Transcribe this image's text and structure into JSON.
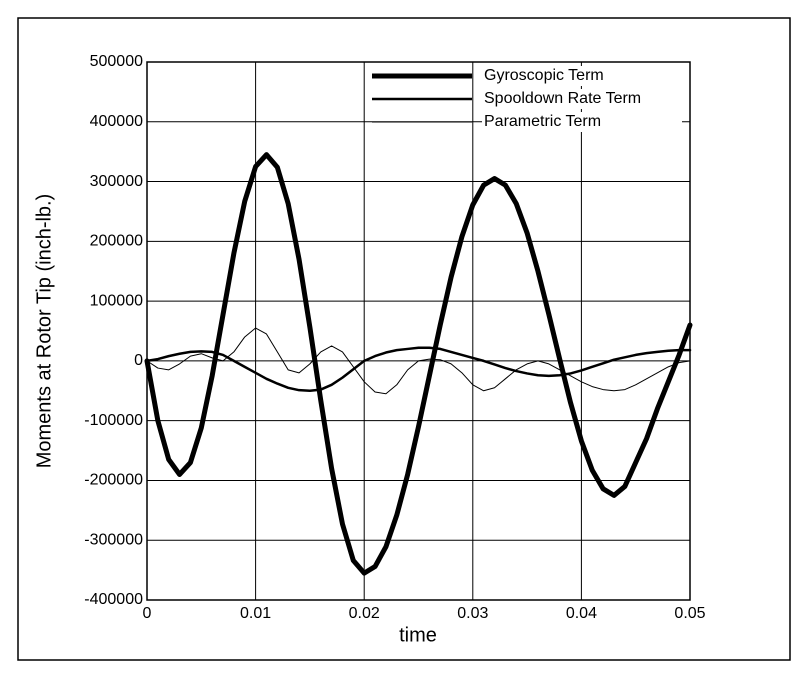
{
  "chart_data": {
    "type": "line",
    "xlabel": "time",
    "ylabel": "Moments at Rotor Tip   (inch-lb.)",
    "x": [
      0,
      0.001,
      0.002,
      0.003,
      0.004,
      0.005,
      0.006,
      0.007,
      0.008,
      0.009,
      0.01,
      0.011,
      0.012,
      0.013,
      0.014,
      0.015,
      0.016,
      0.017,
      0.018,
      0.019,
      0.02,
      0.021,
      0.022,
      0.023,
      0.024,
      0.025,
      0.026,
      0.027,
      0.028,
      0.029,
      0.03,
      0.031,
      0.032,
      0.033,
      0.034,
      0.035,
      0.036,
      0.037,
      0.038,
      0.039,
      0.04,
      0.041,
      0.042,
      0.043,
      0.044,
      0.045,
      0.046,
      0.047,
      0.048,
      0.049,
      0.05
    ],
    "series": [
      {
        "name": "Gyroscopic Term",
        "color": "#000000",
        "width": 5,
        "values": [
          0,
          -100000,
          -165000,
          -190000,
          -170000,
          -112000,
          -25000,
          77500,
          180000,
          267000,
          325000,
          345000,
          324000,
          263000,
          170000,
          56000,
          -66000,
          -180000,
          -273000,
          -334000,
          -355000,
          -344000,
          -311000,
          -258000,
          -190000,
          -110000,
          -25000,
          60000,
          140000,
          208000,
          261000,
          294000,
          305000,
          294000,
          263000,
          214000,
          150000,
          78000,
          3000,
          -70000,
          -134000,
          -183000,
          -214000,
          -225000,
          -210000,
          -170000,
          -130000,
          -80000,
          -35000,
          10000,
          60000
        ]
      },
      {
        "name": "Spooldown Rate Term",
        "color": "#000000",
        "width": 2.5,
        "values": [
          0,
          3000,
          8000,
          12000,
          15000,
          16000,
          15000,
          10000,
          0,
          -10000,
          -20000,
          -30000,
          -38000,
          -45000,
          -49000,
          -50000,
          -48000,
          -40000,
          -28000,
          -14000,
          0,
          8000,
          14000,
          18000,
          20000,
          22000,
          22000,
          20000,
          15000,
          10000,
          5000,
          0,
          -6000,
          -12000,
          -17000,
          -21000,
          -24000,
          -25000,
          -24000,
          -21000,
          -16000,
          -10000,
          -4000,
          2000,
          6000,
          10000,
          13000,
          15000,
          17000,
          18000,
          18000
        ]
      },
      {
        "name": "Parametric Term",
        "color": "#000000",
        "width": 1,
        "values": [
          0,
          -12000,
          -15000,
          -5000,
          8000,
          12000,
          5000,
          0,
          15000,
          40000,
          55000,
          45000,
          15000,
          -15000,
          -20000,
          -5000,
          15000,
          25000,
          15000,
          -10000,
          -35000,
          -52000,
          -55000,
          -40000,
          -15000,
          0,
          3000,
          2000,
          -5000,
          -20000,
          -40000,
          -50000,
          -45000,
          -30000,
          -15000,
          -5000,
          0,
          -5000,
          -15000,
          -25000,
          -35000,
          -43000,
          -48000,
          -50000,
          -48000,
          -40000,
          -30000,
          -20000,
          -10000,
          -3000,
          0
        ]
      }
    ],
    "xlim": [
      0,
      0.05
    ],
    "xticks": [
      0,
      0.01,
      0.02,
      0.03,
      0.04,
      0.05
    ],
    "ylim": [
      -400000,
      500000
    ],
    "yticks": [
      -400000,
      -300000,
      -200000,
      -100000,
      0,
      100000,
      200000,
      300000,
      400000,
      500000
    ],
    "grid": true,
    "legend": "upper right"
  }
}
